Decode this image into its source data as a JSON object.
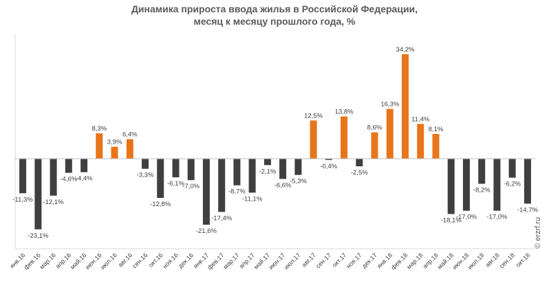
{
  "chart_data": {
    "type": "bar",
    "title_line1": "Динамика прироста ввода жилья в Российской Федерации,",
    "title_line2": "месяц к месяцу прошлого года, %",
    "categories": [
      "янв.16",
      "фев.16",
      "мар.16",
      "апр.16",
      "май.16",
      "июн.16",
      "июл.16",
      "авг.16",
      "сен.16",
      "окт.16",
      "ноя.16",
      "дек.16",
      "янв.17",
      "фев.17",
      "мар.17",
      "апр.17",
      "май.17",
      "июн.17",
      "июл.17",
      "авг.17",
      "сен.17",
      "окт.17",
      "ноя.17",
      "дек.17",
      "янв.18",
      "фев.18",
      "мар.18",
      "апр.18",
      "май.18",
      "июн.18",
      "июл.18",
      "авг.18",
      "сен.18",
      "окт.18"
    ],
    "values": [
      -11.3,
      -23.1,
      -12.1,
      -4.6,
      -4.4,
      8.3,
      3.9,
      6.4,
      -3.3,
      -12.8,
      -6.1,
      -7.0,
      -21.6,
      -17.4,
      -8.7,
      -11.1,
      -2.1,
      -6.6,
      -5.3,
      12.5,
      -0.4,
      13.8,
      -2.5,
      8.6,
      16.3,
      34.2,
      11.4,
      8.1,
      -18.1,
      -17.0,
      -8.2,
      -17.0,
      -6.2,
      -14.7
    ],
    "value_labels": [
      "-11,3%",
      "-23,1%",
      "-12,1%",
      "-4,6%",
      "-4,4%",
      "8,3%",
      "3,9%",
      "6,4%",
      "-3,3%",
      "-12,8%",
      "-6,1%",
      "-7,0%",
      "-21,6%",
      "-17,4%",
      "-8,7%",
      "-11,1%",
      "-2,1%",
      "-6,6%",
      "-5,3%",
      "12,5%",
      "-0,4%",
      "13,8%",
      "-2,5%",
      "8,6%",
      "16,3%",
      "34,2%",
      "11,4%",
      "8,1%",
      "-18,1%",
      "-17,0%",
      "-8,2%",
      "-17,0%",
      "-6,2%",
      "-14,7%"
    ],
    "positive_color": "#e8751a",
    "negative_color": "#3f3f3f",
    "ylim": [
      -30,
      40
    ],
    "grid": false,
    "legend": "none",
    "watermark": "© erzrf.ru"
  }
}
